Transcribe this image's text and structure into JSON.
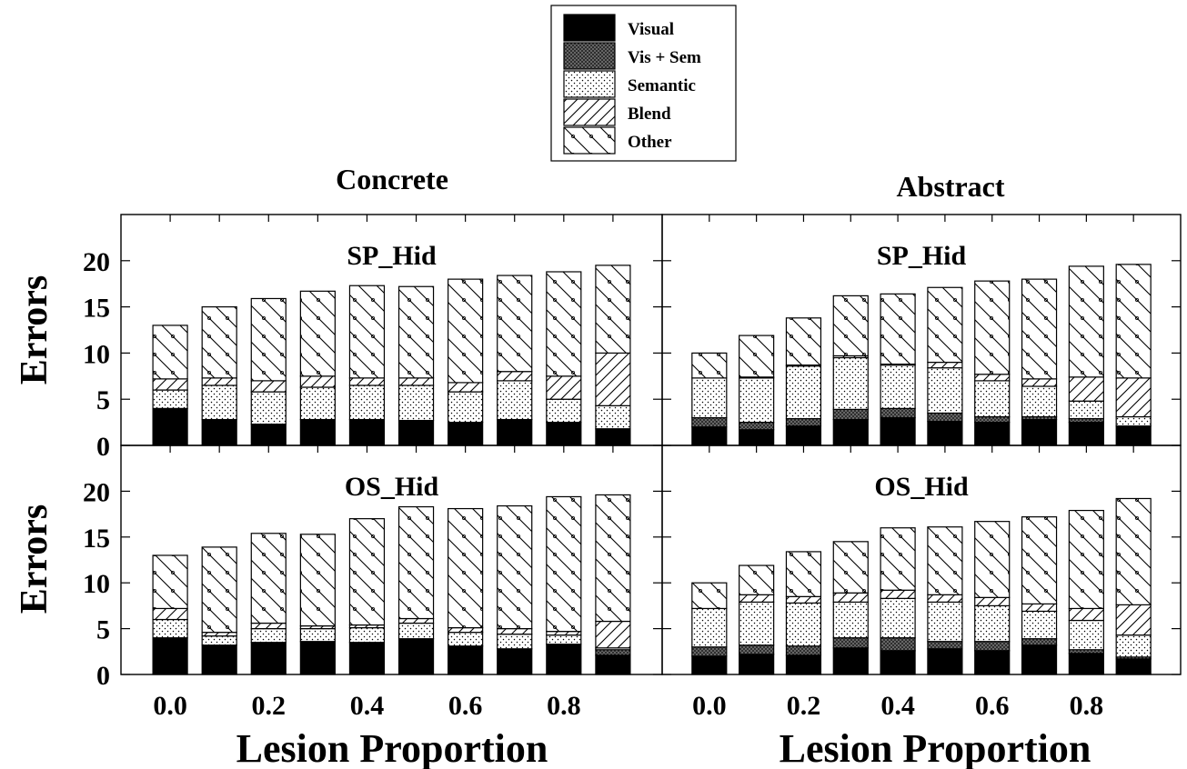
{
  "chart_data": {
    "type": "bar",
    "stacked": true,
    "legend": {
      "position": "top-center",
      "items": [
        {
          "name": "Visual",
          "pattern": "solid-black"
        },
        {
          "name": "Vis + Sem",
          "pattern": "dense-crosshatch"
        },
        {
          "name": "Semantic",
          "pattern": "dots"
        },
        {
          "name": "Blend",
          "pattern": "diagonal-lines"
        },
        {
          "name": "Other",
          "pattern": "diagonal-lines-with-dots"
        }
      ]
    },
    "column_titles": [
      "Concrete",
      "Abstract"
    ],
    "row_titles": [
      "SP_Hid",
      "OS_Hid"
    ],
    "ylabel": "Errors",
    "xlabel": "Lesion Proportion",
    "ylim": [
      0,
      25
    ],
    "yticks": [
      0,
      5,
      10,
      15,
      20
    ],
    "ytick_labels": [
      "0",
      "5",
      "10",
      "15",
      "20"
    ],
    "xlim": [
      -0.1,
      1.0
    ],
    "x": [
      0.0,
      0.1,
      0.2,
      0.3,
      0.4,
      0.5,
      0.6,
      0.7,
      0.8,
      0.9
    ],
    "xticks": [
      0.0,
      0.2,
      0.4,
      0.6,
      0.8
    ],
    "xtick_labels": [
      "0.0",
      "0.2",
      "0.4",
      "0.6",
      "0.8"
    ],
    "series_names": [
      "Visual",
      "Vis + Sem",
      "Semantic",
      "Blend",
      "Other"
    ],
    "panels": [
      {
        "row_title": "SP_Hid",
        "column": "Concrete",
        "series": [
          {
            "name": "Visual",
            "values": [
              4.0,
              2.8,
              2.3,
              2.8,
              2.8,
              2.7,
              2.5,
              2.8,
              2.5,
              1.8
            ]
          },
          {
            "name": "Vis + Sem",
            "values": [
              0,
              0,
              0,
              0,
              0,
              0,
              0,
              0,
              0,
              0
            ]
          },
          {
            "name": "Semantic",
            "values": [
              2.0,
              3.7,
              3.5,
              3.5,
              3.7,
              3.8,
              3.3,
              4.2,
              2.5,
              2.5
            ]
          },
          {
            "name": "Blend",
            "values": [
              1.2,
              0.8,
              1.2,
              1.2,
              0.8,
              0.8,
              1.0,
              1.0,
              2.5,
              5.7
            ]
          },
          {
            "name": "Other",
            "values": [
              5.8,
              7.7,
              8.9,
              9.2,
              10.0,
              9.9,
              11.2,
              10.4,
              11.3,
              9.5
            ]
          }
        ]
      },
      {
        "row_title": "SP_Hid",
        "column": "Abstract",
        "series": [
          {
            "name": "Visual",
            "values": [
              2.0,
              1.7,
              2.1,
              2.8,
              3.0,
              2.6,
              2.5,
              2.8,
              2.5,
              2.1
            ]
          },
          {
            "name": "Vis + Sem",
            "values": [
              1.0,
              0.8,
              0.8,
              1.1,
              1.0,
              0.9,
              0.6,
              0.3,
              0.4,
              0.0
            ]
          },
          {
            "name": "Semantic",
            "values": [
              4.3,
              4.8,
              5.7,
              5.6,
              4.7,
              4.9,
              3.9,
              3.3,
              1.9,
              1.0
            ]
          },
          {
            "name": "Blend",
            "values": [
              0,
              0.1,
              0.1,
              0.2,
              0.1,
              0.6,
              0.7,
              0.8,
              2.6,
              4.2
            ]
          },
          {
            "name": "Other",
            "values": [
              2.7,
              4.5,
              5.1,
              6.5,
              7.6,
              8.1,
              10.1,
              10.8,
              12.0,
              12.3
            ]
          }
        ]
      },
      {
        "row_title": "OS_Hid",
        "column": "Concrete",
        "series": [
          {
            "name": "Visual",
            "values": [
              4.0,
              3.2,
              3.5,
              3.6,
              3.5,
              3.9,
              3.1,
              2.8,
              3.3,
              2.1
            ]
          },
          {
            "name": "Vis + Sem",
            "values": [
              0,
              0,
              0,
              0,
              0,
              0,
              0,
              0,
              0,
              0.6
            ]
          },
          {
            "name": "Semantic",
            "values": [
              2.0,
              1.0,
              1.5,
              1.4,
              1.6,
              1.7,
              1.5,
              1.6,
              1.0,
              0.2
            ]
          },
          {
            "name": "Blend",
            "values": [
              1.2,
              0.4,
              0.6,
              0.3,
              0.3,
              0.5,
              0.5,
              0.6,
              0.4,
              2.9
            ]
          },
          {
            "name": "Other",
            "values": [
              5.8,
              9.3,
              9.8,
              10.0,
              11.6,
              12.2,
              13.0,
              13.4,
              14.7,
              13.8
            ]
          }
        ]
      },
      {
        "row_title": "OS_Hid",
        "column": "Abstract",
        "series": [
          {
            "name": "Visual",
            "values": [
              2.0,
              2.2,
              2.1,
              2.9,
              2.6,
              2.8,
              2.6,
              3.2,
              2.3,
              1.7
            ]
          },
          {
            "name": "Vis + Sem",
            "values": [
              1.0,
              1.0,
              1.0,
              1.1,
              1.4,
              0.8,
              1.0,
              0.7,
              0.4,
              0.2
            ]
          },
          {
            "name": "Semantic",
            "values": [
              4.2,
              4.7,
              4.7,
              3.9,
              4.3,
              4.3,
              3.9,
              3.0,
              3.2,
              2.4
            ]
          },
          {
            "name": "Blend",
            "values": [
              0,
              0.8,
              0.7,
              1.0,
              0.9,
              0.8,
              0.9,
              0.8,
              1.3,
              3.3
            ]
          },
          {
            "name": "Other",
            "values": [
              2.8,
              3.2,
              4.9,
              5.6,
              6.8,
              7.4,
              8.3,
              9.5,
              10.7,
              11.6
            ]
          }
        ]
      }
    ]
  }
}
